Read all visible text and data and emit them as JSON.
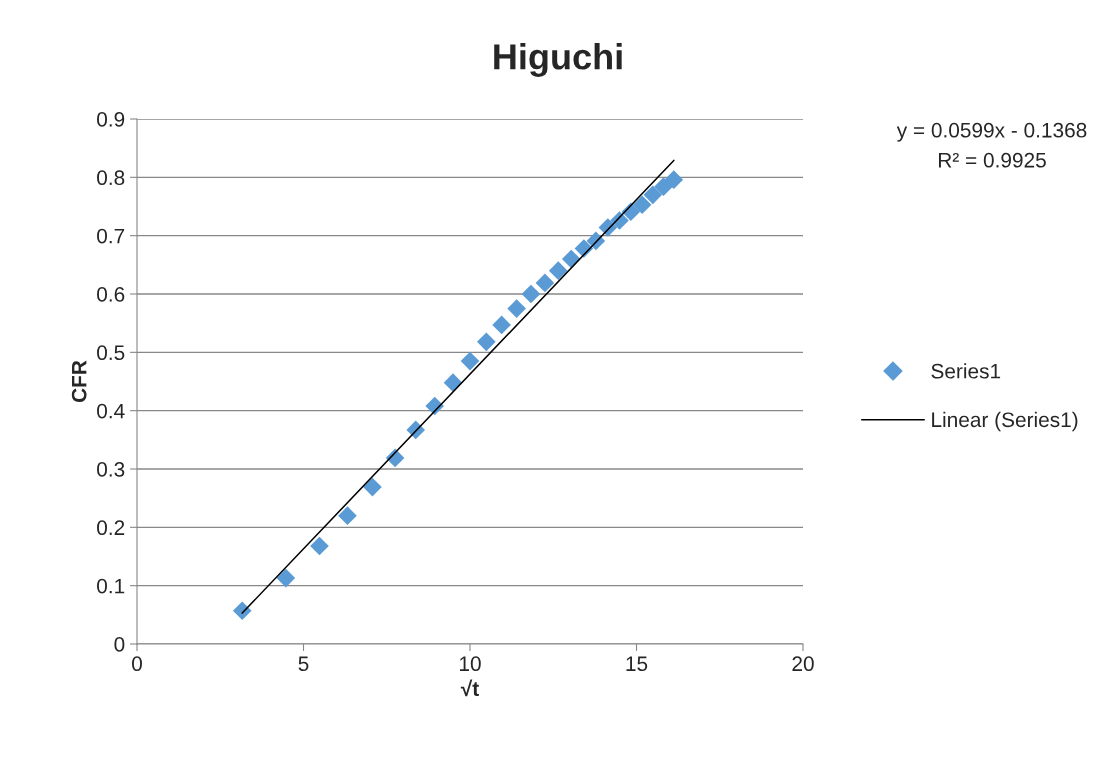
{
  "chart_data": {
    "type": "scatter",
    "title": "Higuchi",
    "xlabel": "√t",
    "ylabel": "CFR",
    "series": [
      {
        "name": "Series1",
        "color": "#5b9bd5",
        "marker": "diamond",
        "x": [
          3.16,
          4.47,
          5.48,
          6.32,
          7.07,
          7.75,
          8.37,
          8.94,
          9.49,
          10,
          10.49,
          10.95,
          11.4,
          11.83,
          12.25,
          12.65,
          13.04,
          13.42,
          13.78,
          14.14,
          14.49,
          14.83,
          15.17,
          15.49,
          15.81,
          16.12
        ],
        "values": [
          0.057,
          0.113,
          0.168,
          0.22,
          0.269,
          0.319,
          0.367,
          0.408,
          0.448,
          0.485,
          0.518,
          0.547,
          0.575,
          0.6,
          0.619,
          0.64,
          0.66,
          0.678,
          0.691,
          0.714,
          0.726,
          0.741,
          0.753,
          0.77,
          0.784,
          0.796
        ]
      },
      {
        "name": "Linear (Series1)",
        "type": "line",
        "color": "#000000",
        "marker": "none",
        "line_style": "solid",
        "x": [
          3.16,
          16.12
        ],
        "values": [
          0.053,
          0.829
        ]
      }
    ],
    "annotations": [
      "y = 0.0599x - 0.1368",
      "R² = 0.9925"
    ],
    "xlim": [
      0,
      20
    ],
    "xticks": [
      0,
      5,
      10,
      15,
      20
    ],
    "ylim": [
      0,
      0.9
    ],
    "yticks": [
      0,
      0.1,
      0.2,
      0.3,
      0.4,
      0.5,
      0.6,
      0.7,
      0.8,
      0.9
    ],
    "grid": "y",
    "legend": "right"
  }
}
